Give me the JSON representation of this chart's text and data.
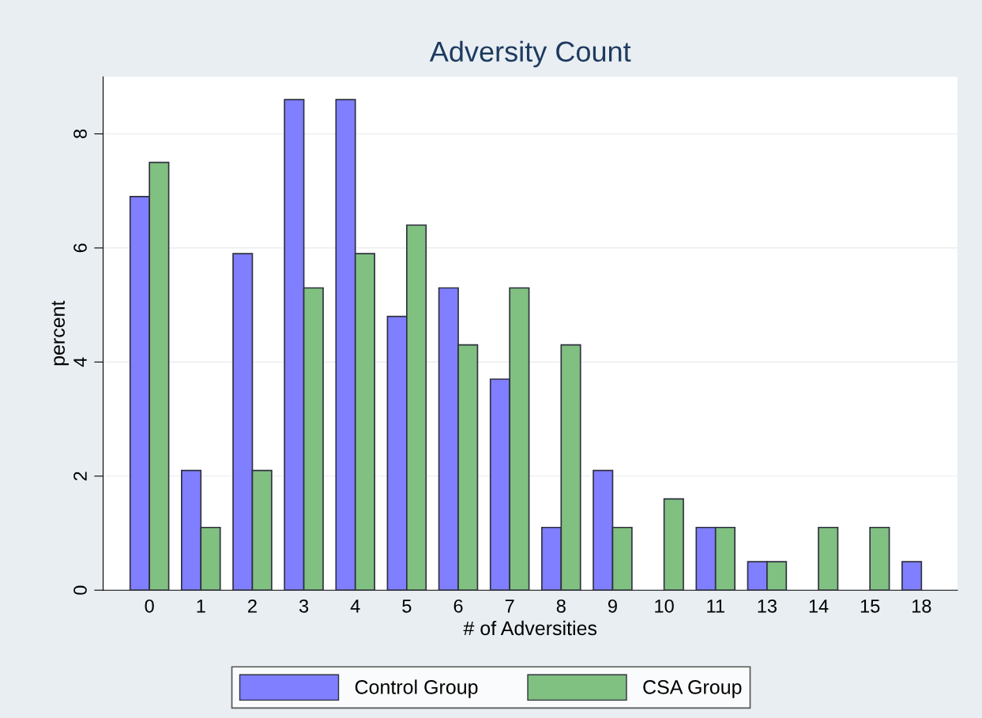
{
  "chart_data": {
    "type": "bar",
    "title": "Adversity Count",
    "xlabel": "# of Adversities",
    "ylabel": "percent",
    "categories": [
      "0",
      "1",
      "2",
      "3",
      "4",
      "5",
      "6",
      "7",
      "8",
      "9",
      "10",
      "11",
      "13",
      "14",
      "15",
      "18"
    ],
    "series": [
      {
        "name": "Control Group",
        "color": "#7f7fff",
        "values": [
          6.9,
          2.1,
          5.9,
          8.6,
          8.6,
          4.8,
          5.3,
          3.7,
          1.1,
          2.1,
          null,
          1.1,
          0.5,
          null,
          null,
          0.5
        ]
      },
      {
        "name": "CSA Group",
        "color": "#80c080",
        "values": [
          7.5,
          1.1,
          2.1,
          5.3,
          5.9,
          6.4,
          4.3,
          5.3,
          4.3,
          1.1,
          1.6,
          1.1,
          0.5,
          1.1,
          1.1,
          null
        ]
      }
    ],
    "ylim": [
      0,
      9
    ],
    "yticks": [
      0,
      2,
      4,
      6,
      8
    ],
    "grid": "y",
    "legend": "bottom"
  }
}
